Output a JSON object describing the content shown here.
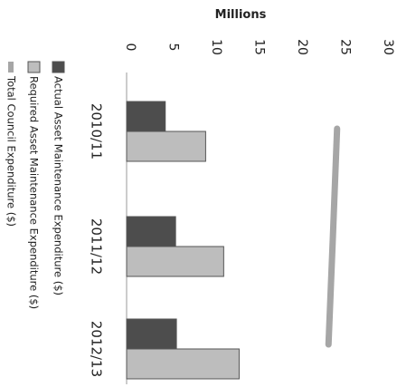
{
  "chart_data": {
    "type": "bar",
    "rotated": "image rotated 90 degrees clockwise",
    "ylabel": "Millions",
    "ylim": [
      0,
      30
    ],
    "ticks": [
      0,
      5,
      10,
      15,
      20,
      25,
      30
    ],
    "tick_labels": [
      "0",
      "5",
      "10",
      "15",
      "20",
      "25",
      "30"
    ],
    "categories": [
      "2010/11",
      "2011/12",
      "2012/13"
    ],
    "series": [
      {
        "name": "Actual Asset Maintenance Expenditure ($)",
        "kind": "bar",
        "values": [
          4.5,
          5.7,
          5.8
        ],
        "color": "#4d4d4d"
      },
      {
        "name": "Required Asset Maintenance Expenditure ($)",
        "kind": "bar",
        "values": [
          9.2,
          11.3,
          13.1
        ],
        "color": "#bdbdbd"
      },
      {
        "name": "Total Council Expenditure ($)",
        "kind": "line",
        "values": [
          24.5,
          24.0,
          23.5
        ],
        "color": "#a6a6a6"
      }
    ],
    "legend_position": "bottom"
  }
}
